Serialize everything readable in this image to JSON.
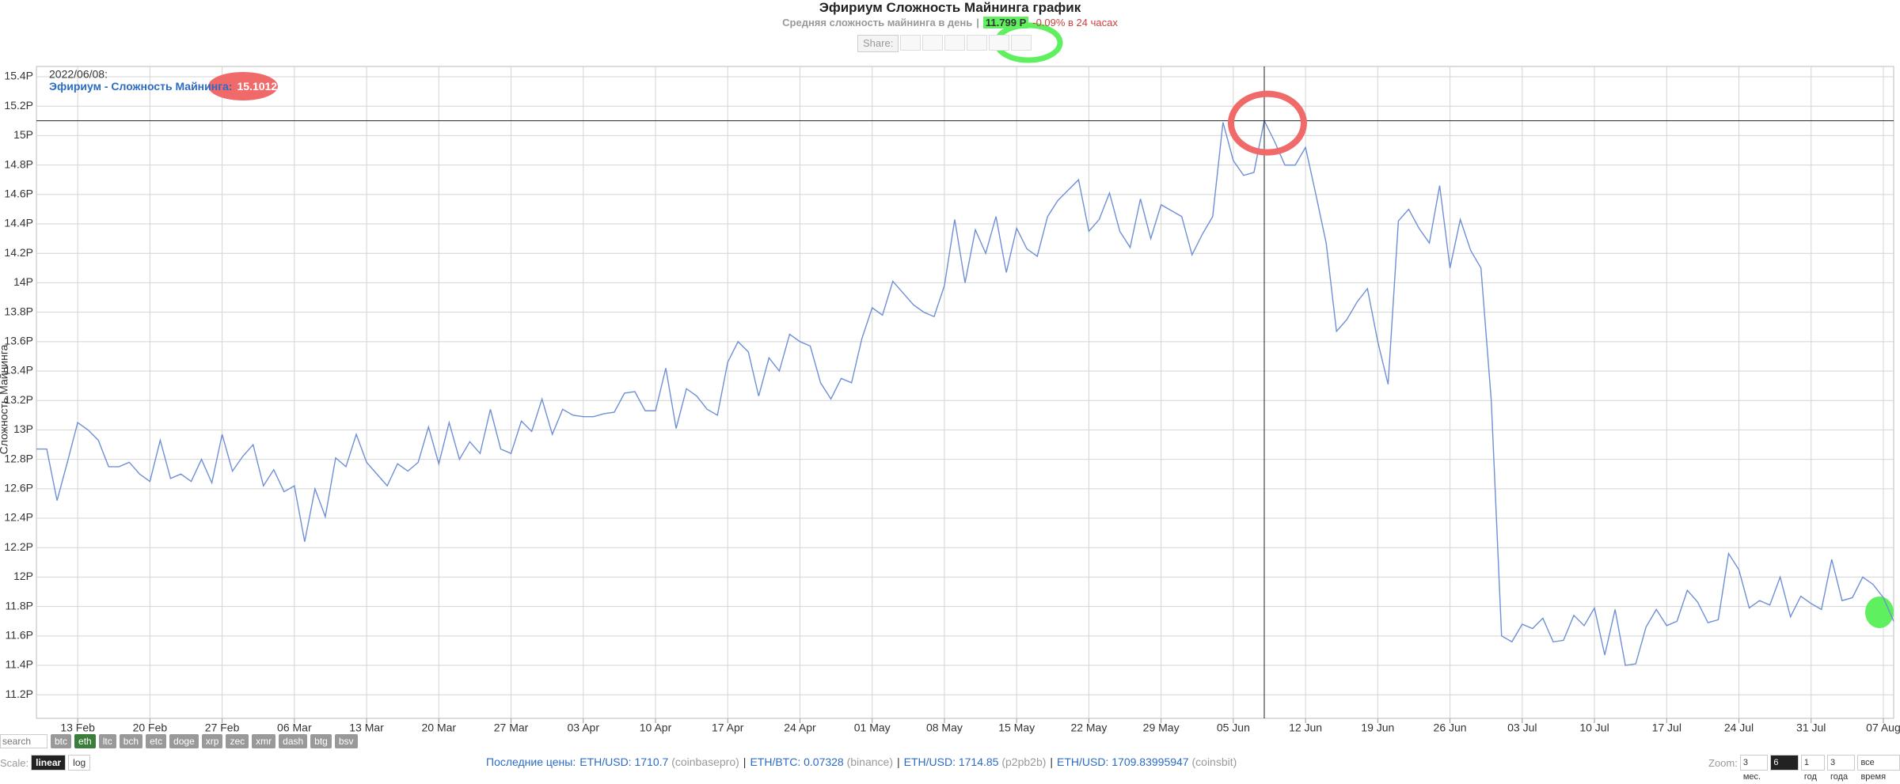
{
  "header": {
    "title": "Эфириум Сложность Майнинга график",
    "subtitle": "Средняя сложность майнинга в день",
    "separator": "|",
    "current": "11.799 P",
    "change": "-0.09% в 24 часах"
  },
  "share": {
    "label": "Share:"
  },
  "chart_data": {
    "type": "line",
    "y_label": "Сложность Майнинга",
    "grid": true,
    "x": [
      "2022/02/09",
      "2022/02/10",
      "2022/02/11",
      "2022/02/12",
      "2022/02/13",
      "2022/02/14",
      "2022/02/15",
      "2022/02/16",
      "2022/02/17",
      "2022/02/18",
      "2022/02/19",
      "2022/02/20",
      "2022/02/21",
      "2022/02/22",
      "2022/02/23",
      "2022/02/24",
      "2022/02/25",
      "2022/02/26",
      "2022/02/27",
      "2022/02/28",
      "2022/03/01",
      "2022/03/02",
      "2022/03/03",
      "2022/03/04",
      "2022/03/05",
      "2022/03/06",
      "2022/03/07",
      "2022/03/08",
      "2022/03/09",
      "2022/03/10",
      "2022/03/11",
      "2022/03/12",
      "2022/03/13",
      "2022/03/14",
      "2022/03/15",
      "2022/03/16",
      "2022/03/17",
      "2022/03/18",
      "2022/03/19",
      "2022/03/20",
      "2022/03/21",
      "2022/03/22",
      "2022/03/23",
      "2022/03/24",
      "2022/03/25",
      "2022/03/26",
      "2022/03/27",
      "2022/03/28",
      "2022/03/29",
      "2022/03/30",
      "2022/03/31",
      "2022/04/01",
      "2022/04/02",
      "2022/04/03",
      "2022/04/04",
      "2022/04/05",
      "2022/04/06",
      "2022/04/07",
      "2022/04/08",
      "2022/04/09",
      "2022/04/10",
      "2022/04/11",
      "2022/04/12",
      "2022/04/13",
      "2022/04/14",
      "2022/04/15",
      "2022/04/16",
      "2022/04/17",
      "2022/04/18",
      "2022/04/19",
      "2022/04/20",
      "2022/04/21",
      "2022/04/22",
      "2022/04/23",
      "2022/04/24",
      "2022/04/25",
      "2022/04/26",
      "2022/04/27",
      "2022/04/28",
      "2022/04/29",
      "2022/04/30",
      "2022/05/01",
      "2022/05/02",
      "2022/05/03",
      "2022/05/04",
      "2022/05/05",
      "2022/05/06",
      "2022/05/07",
      "2022/05/08",
      "2022/05/09",
      "2022/05/10",
      "2022/05/11",
      "2022/05/12",
      "2022/05/13",
      "2022/05/14",
      "2022/05/15",
      "2022/05/16",
      "2022/05/17",
      "2022/05/18",
      "2022/05/19",
      "2022/05/20",
      "2022/05/21",
      "2022/05/22",
      "2022/05/23",
      "2022/05/24",
      "2022/05/25",
      "2022/05/26",
      "2022/05/27",
      "2022/05/28",
      "2022/05/29",
      "2022/05/30",
      "2022/05/31",
      "2022/06/01",
      "2022/06/02",
      "2022/06/03",
      "2022/06/04",
      "2022/06/05",
      "2022/06/06",
      "2022/06/07",
      "2022/06/08",
      "2022/06/09",
      "2022/06/10",
      "2022/06/11",
      "2022/06/12",
      "2022/06/13",
      "2022/06/14",
      "2022/06/15",
      "2022/06/16",
      "2022/06/17",
      "2022/06/18",
      "2022/06/19",
      "2022/06/20",
      "2022/06/21",
      "2022/06/22",
      "2022/06/23",
      "2022/06/24",
      "2022/06/25",
      "2022/06/26",
      "2022/06/27",
      "2022/06/28",
      "2022/06/29",
      "2022/06/30",
      "2022/07/01",
      "2022/07/02",
      "2022/07/03",
      "2022/07/04",
      "2022/07/05",
      "2022/07/06",
      "2022/07/07",
      "2022/07/08",
      "2022/07/09",
      "2022/07/10",
      "2022/07/11",
      "2022/07/12",
      "2022/07/13",
      "2022/07/14",
      "2022/07/15",
      "2022/07/16",
      "2022/07/17",
      "2022/07/18",
      "2022/07/19",
      "2022/07/20",
      "2022/07/21",
      "2022/07/22",
      "2022/07/23",
      "2022/07/24",
      "2022/07/25",
      "2022/07/26",
      "2022/07/27",
      "2022/07/28",
      "2022/07/29",
      "2022/07/30",
      "2022/07/31",
      "2022/08/01",
      "2022/08/02",
      "2022/08/03",
      "2022/08/04",
      "2022/08/05",
      "2022/08/06",
      "2022/08/07",
      "2022/08/08"
    ],
    "series": [
      {
        "name": "Эфириум - Сложность Майнинга:",
        "color": "#6f8fd6",
        "values": [
          12.87,
          12.87,
          12.52,
          12.78,
          13.05,
          13.0,
          12.93,
          12.75,
          12.75,
          12.78,
          12.7,
          12.65,
          12.93,
          12.67,
          12.7,
          12.65,
          12.8,
          12.64,
          12.97,
          12.72,
          12.82,
          12.9,
          12.62,
          12.73,
          12.58,
          12.62,
          12.24,
          12.6,
          12.41,
          12.81,
          12.75,
          12.97,
          12.78,
          12.7,
          12.62,
          12.77,
          12.72,
          12.78,
          13.02,
          12.77,
          13.05,
          12.8,
          12.92,
          12.84,
          13.14,
          12.87,
          12.84,
          13.06,
          12.99,
          13.21,
          12.97,
          13.14,
          13.1,
          13.09,
          13.09,
          13.11,
          13.12,
          13.25,
          13.26,
          13.13,
          13.13,
          13.42,
          13.01,
          13.28,
          13.23,
          13.14,
          13.1,
          13.46,
          13.6,
          13.53,
          13.23,
          13.49,
          13.4,
          13.65,
          13.6,
          13.57,
          13.32,
          13.21,
          13.35,
          13.32,
          13.62,
          13.83,
          13.78,
          14.01,
          13.93,
          13.85,
          13.8,
          13.77,
          13.98,
          14.43,
          14.0,
          14.36,
          14.2,
          14.45,
          14.07,
          14.37,
          14.23,
          14.18,
          14.45,
          14.56,
          14.63,
          14.7,
          14.35,
          14.43,
          14.61,
          14.35,
          14.24,
          14.57,
          14.3,
          14.53,
          14.49,
          14.45,
          14.19,
          14.33,
          14.45,
          15.09,
          14.83,
          14.73,
          14.75,
          15.1012,
          14.96,
          14.8,
          14.8,
          14.92,
          14.6,
          14.27,
          13.67,
          13.75,
          13.87,
          13.96,
          13.6,
          13.31,
          14.42,
          14.5,
          14.37,
          14.27,
          14.66,
          14.1,
          14.43,
          14.22,
          14.1,
          13.2,
          11.6,
          11.56,
          11.68,
          11.65,
          11.72,
          11.56,
          11.57,
          11.74,
          11.67,
          11.79,
          11.47,
          11.78,
          11.4,
          11.41,
          11.66,
          11.78,
          11.67,
          11.7,
          11.91,
          11.83,
          11.69,
          11.71,
          12.16,
          12.05,
          11.79,
          11.84,
          11.81,
          12.0,
          11.73,
          11.87,
          11.82,
          11.78,
          12.12,
          11.84,
          11.86,
          12.0,
          11.95,
          11.86,
          11.7
        ]
      }
    ],
    "xlim": [
      "2022/02/09",
      "2022/08/08"
    ],
    "ylim": [
      11.04,
      15.47
    ],
    "xticks": [
      {
        "value": "2022/02/13",
        "label": "13 Feb"
      },
      {
        "value": "2022/02/20",
        "label": "20 Feb"
      },
      {
        "value": "2022/02/27",
        "label": "27 Feb"
      },
      {
        "value": "2022/03/06",
        "label": "06 Mar"
      },
      {
        "value": "2022/03/13",
        "label": "13 Mar"
      },
      {
        "value": "2022/03/20",
        "label": "20 Mar"
      },
      {
        "value": "2022/03/27",
        "label": "27 Mar"
      },
      {
        "value": "2022/04/03",
        "label": "03 Apr"
      },
      {
        "value": "2022/04/10",
        "label": "10 Apr"
      },
      {
        "value": "2022/04/17",
        "label": "17 Apr"
      },
      {
        "value": "2022/04/24",
        "label": "24 Apr"
      },
      {
        "value": "2022/05/01",
        "label": "01 May"
      },
      {
        "value": "2022/05/08",
        "label": "08 May"
      },
      {
        "value": "2022/05/15",
        "label": "15 May"
      },
      {
        "value": "2022/05/22",
        "label": "22 May"
      },
      {
        "value": "2022/05/29",
        "label": "29 May"
      },
      {
        "value": "2022/06/05",
        "label": "05 Jun"
      },
      {
        "value": "2022/06/12",
        "label": "12 Jun"
      },
      {
        "value": "2022/06/19",
        "label": "19 Jun"
      },
      {
        "value": "2022/06/26",
        "label": "26 Jun"
      },
      {
        "value": "2022/07/03",
        "label": "03 Jul"
      },
      {
        "value": "2022/07/10",
        "label": "10 Jul"
      },
      {
        "value": "2022/07/17",
        "label": "17 Jul"
      },
      {
        "value": "2022/07/24",
        "label": "24 Jul"
      },
      {
        "value": "2022/07/31",
        "label": "31 Jul"
      },
      {
        "value": "2022/08/07",
        "label": "07 Aug"
      }
    ],
    "yticks": [
      {
        "value": 11.2,
        "label": "11.2P"
      },
      {
        "value": 11.4,
        "label": "11.4P"
      },
      {
        "value": 11.6,
        "label": "11.6P"
      },
      {
        "value": 11.8,
        "label": "11.8P"
      },
      {
        "value": 12,
        "label": "12P"
      },
      {
        "value": 12.2,
        "label": "12.2P"
      },
      {
        "value": 12.4,
        "label": "12.4P"
      },
      {
        "value": 12.6,
        "label": "12.6P"
      },
      {
        "value": 12.8,
        "label": "12.8P"
      },
      {
        "value": 13,
        "label": "13P"
      },
      {
        "value": 13.2,
        "label": "13.2P"
      },
      {
        "value": 13.4,
        "label": "13.4P"
      },
      {
        "value": 13.6,
        "label": "13.6P"
      },
      {
        "value": 13.8,
        "label": "13.8P"
      },
      {
        "value": 14,
        "label": "14P"
      },
      {
        "value": 14.2,
        "label": "14.2P"
      },
      {
        "value": 14.4,
        "label": "14.4P"
      },
      {
        "value": 14.6,
        "label": "14.6P"
      },
      {
        "value": 14.8,
        "label": "14.8P"
      },
      {
        "value": 15,
        "label": "15P"
      },
      {
        "value": 15.2,
        "label": "15.2P"
      },
      {
        "value": 15.4,
        "label": "15.4P"
      }
    ],
    "tooltip": {
      "x": {
        "value": "2022/06/08",
        "label": "2022/06/08:"
      },
      "y": {
        "value": 15.1012,
        "label": "15.1012P"
      }
    }
  },
  "controls": {
    "search_placeholder": "search",
    "coins": [
      "btc",
      "eth",
      "ltc",
      "bch",
      "etc",
      "doge",
      "xrp",
      "zec",
      "xmr",
      "dash",
      "btg",
      "bsv"
    ],
    "active_coin": "eth",
    "scale_label": "Scale:",
    "scales": [
      "linear",
      "log"
    ],
    "active_scale": "linear",
    "zoom_label": "Zoom:",
    "zooms": [
      "3 мес.",
      "6 мес.",
      "1 год",
      "3 года",
      "все время"
    ],
    "active_zoom": "6 мес."
  },
  "prices": {
    "label": "Последние цены:",
    "separator": "|",
    "items": [
      {
        "pair": "ETH/USD: 1710.7",
        "source": "(coinbasepro)"
      },
      {
        "pair": "ETH/BTC: 0.07328",
        "source": "(binance)"
      },
      {
        "pair": "ETH/USD: 1714.85",
        "source": "(p2pb2b)"
      },
      {
        "pair": "ETH/USD: 1709.83995947",
        "source": "(coinsbit)"
      }
    ]
  }
}
